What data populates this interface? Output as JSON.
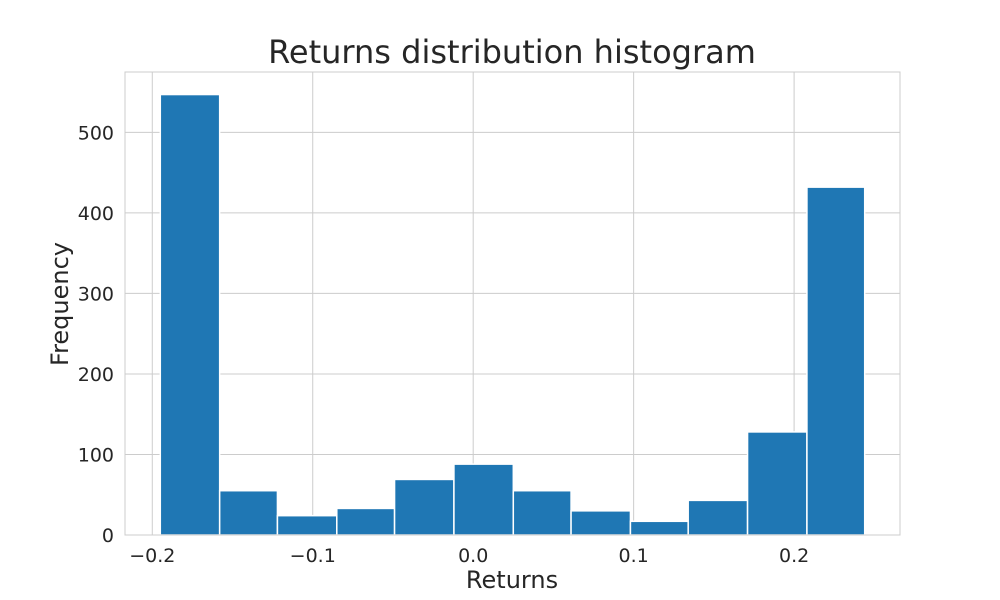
{
  "chart_data": {
    "type": "bar",
    "title": "Returns distribution histogram",
    "xlabel": "Returns",
    "ylabel": "Frequency",
    "bin_edges": [
      -0.195,
      -0.158,
      -0.122,
      -0.085,
      -0.049,
      -0.012,
      0.025,
      0.061,
      0.098,
      0.134,
      0.171,
      0.208,
      0.244
    ],
    "values": [
      547,
      55,
      24,
      33,
      69,
      88,
      55,
      30,
      17,
      43,
      128,
      432
    ],
    "xlim": [
      -0.217,
      0.266
    ],
    "ylim": [
      0,
      575
    ],
    "xticks": [
      -0.2,
      -0.1,
      0.0,
      0.1,
      0.2
    ],
    "xtick_labels": [
      "−0.2",
      "−0.1",
      "0.0",
      "0.1",
      "0.2"
    ],
    "yticks": [
      0,
      100,
      200,
      300,
      400,
      500
    ],
    "ytick_labels": [
      "0",
      "100",
      "200",
      "300",
      "400",
      "500"
    ],
    "grid": true,
    "colors": {
      "bar": "#1f77b4",
      "grid": "#cccccc",
      "edge": "#ffffff",
      "frame": "#cccccc"
    }
  }
}
